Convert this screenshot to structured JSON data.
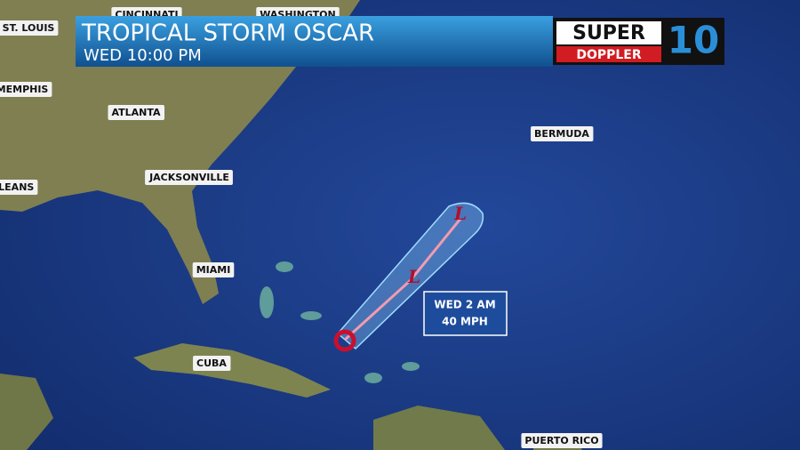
{
  "banner": {
    "title": "TROPICAL STORM OSCAR",
    "time": "WED  10:00 PM"
  },
  "logo": {
    "top": "SUPER",
    "bottom": "DOPPLER",
    "number": "10"
  },
  "places": [
    "CINCINNATI",
    "WASHINGTON",
    "ST. LOUIS",
    "MEMPHIS",
    "ATLANTA",
    "BERMUDA",
    "JACKSONVILLE",
    "RLEANS",
    "MIAMI",
    "CUBA",
    "PUERTO RICO"
  ],
  "storm": {
    "markers": [
      "L",
      "L"
    ],
    "callout": [
      "WED 2 AM",
      "40 MPH"
    ]
  }
}
